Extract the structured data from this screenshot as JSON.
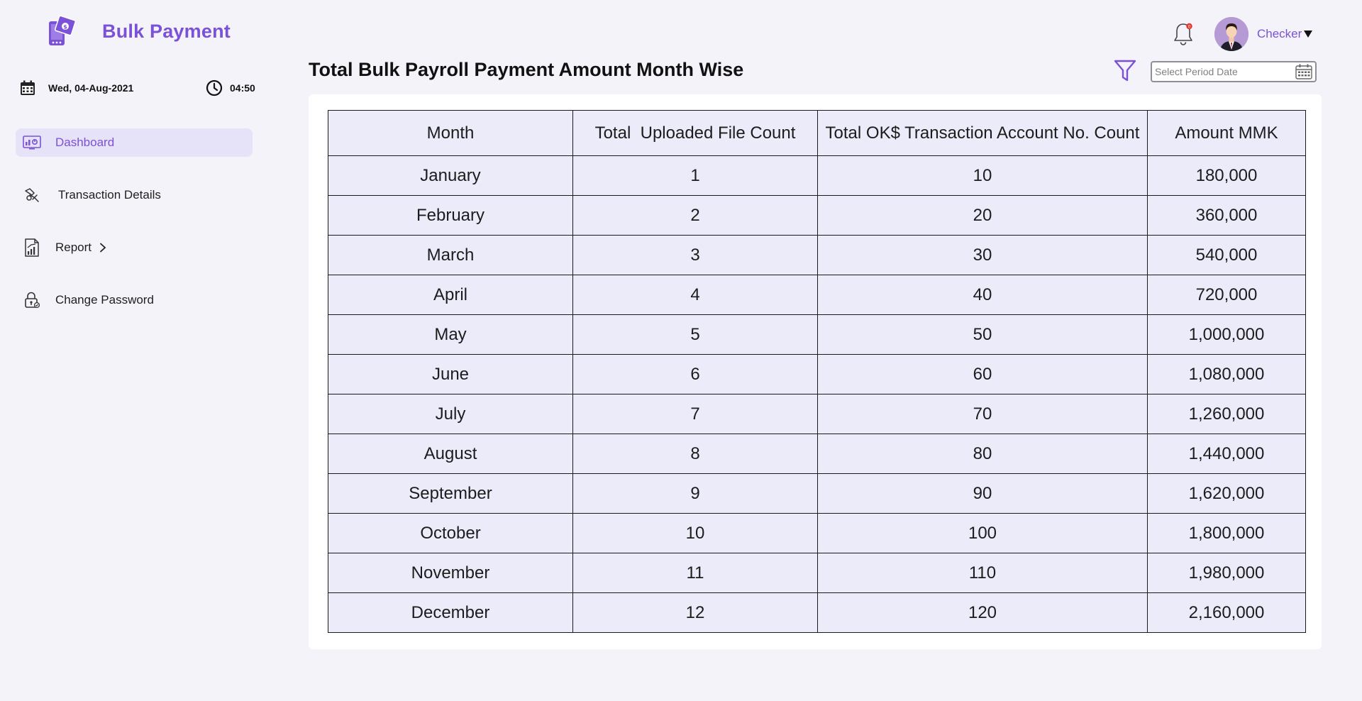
{
  "app": {
    "name": "Bulk Payment",
    "logo_icon": "mobile-wallet-icon",
    "accent_color": "#7b51d8"
  },
  "datetime": {
    "date": "Wed, 04-Aug-2021",
    "time": "04:50"
  },
  "sidebar": {
    "items": [
      {
        "label": "Dashboard",
        "icon": "dashboard-icon",
        "active": true
      },
      {
        "label": "Transaction Details",
        "icon": "transaction-icon",
        "active": false
      },
      {
        "label": "Report",
        "icon": "report-icon",
        "active": false,
        "has_submenu": true
      },
      {
        "label": "Change Password",
        "icon": "lock-icon",
        "active": false
      }
    ]
  },
  "header": {
    "notifications_icon": "bell-icon",
    "notification_badge_color": "#e5342b",
    "user_name": "Checker"
  },
  "main": {
    "title": "Total Bulk Payroll Payment Amount Month Wise",
    "filter_icon": "filter-icon",
    "period_date_placeholder": "Select Period Date",
    "table": {
      "headers": [
        "Month",
        "Total  Uploaded File Count",
        "Total OK$ Transaction Account No. Count",
        "Amount MMK"
      ],
      "rows": [
        [
          "January",
          "1",
          "10",
          "180,000"
        ],
        [
          "February",
          "2",
          "20",
          "360,000"
        ],
        [
          "March",
          "3",
          "30",
          "540,000"
        ],
        [
          "April",
          "4",
          "40",
          "720,000"
        ],
        [
          "May",
          "5",
          "50",
          "1,000,000"
        ],
        [
          "June",
          "6",
          "60",
          "1,080,000"
        ],
        [
          "July",
          "7",
          "70",
          "1,260,000"
        ],
        [
          "August",
          "8",
          "80",
          "1,440,000"
        ],
        [
          "September",
          "9",
          "90",
          "1,620,000"
        ],
        [
          "October",
          "10",
          "100",
          "1,800,000"
        ],
        [
          "November",
          "11",
          "110",
          "1,980,000"
        ],
        [
          "December",
          "12",
          "120",
          "2,160,000"
        ]
      ]
    }
  }
}
